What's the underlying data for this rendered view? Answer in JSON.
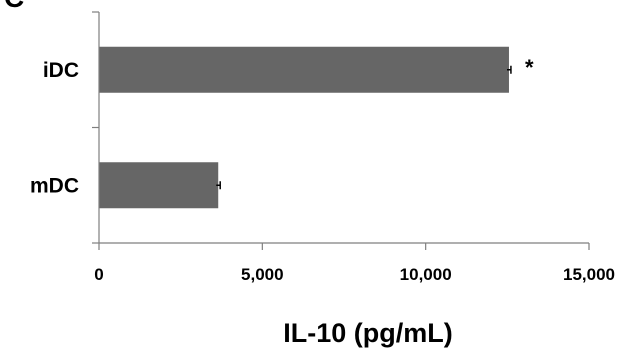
{
  "chart_data": {
    "type": "bar",
    "orientation": "horizontal",
    "panel_label": "C",
    "categories": [
      "iDC",
      "mDC"
    ],
    "values": [
      12550,
      3650
    ],
    "error": [
      60,
      60
    ],
    "annotations": [
      "*",
      ""
    ],
    "xlabel": "IL-10 (pg/mL)",
    "ylabel": "",
    "xlim": [
      0,
      15000
    ],
    "xticks": [
      0,
      5000,
      10000,
      15000
    ],
    "xtick_labels": [
      "0",
      "5,000",
      "10,000",
      "15,000"
    ],
    "grid": false,
    "bar_color": "#666666"
  }
}
